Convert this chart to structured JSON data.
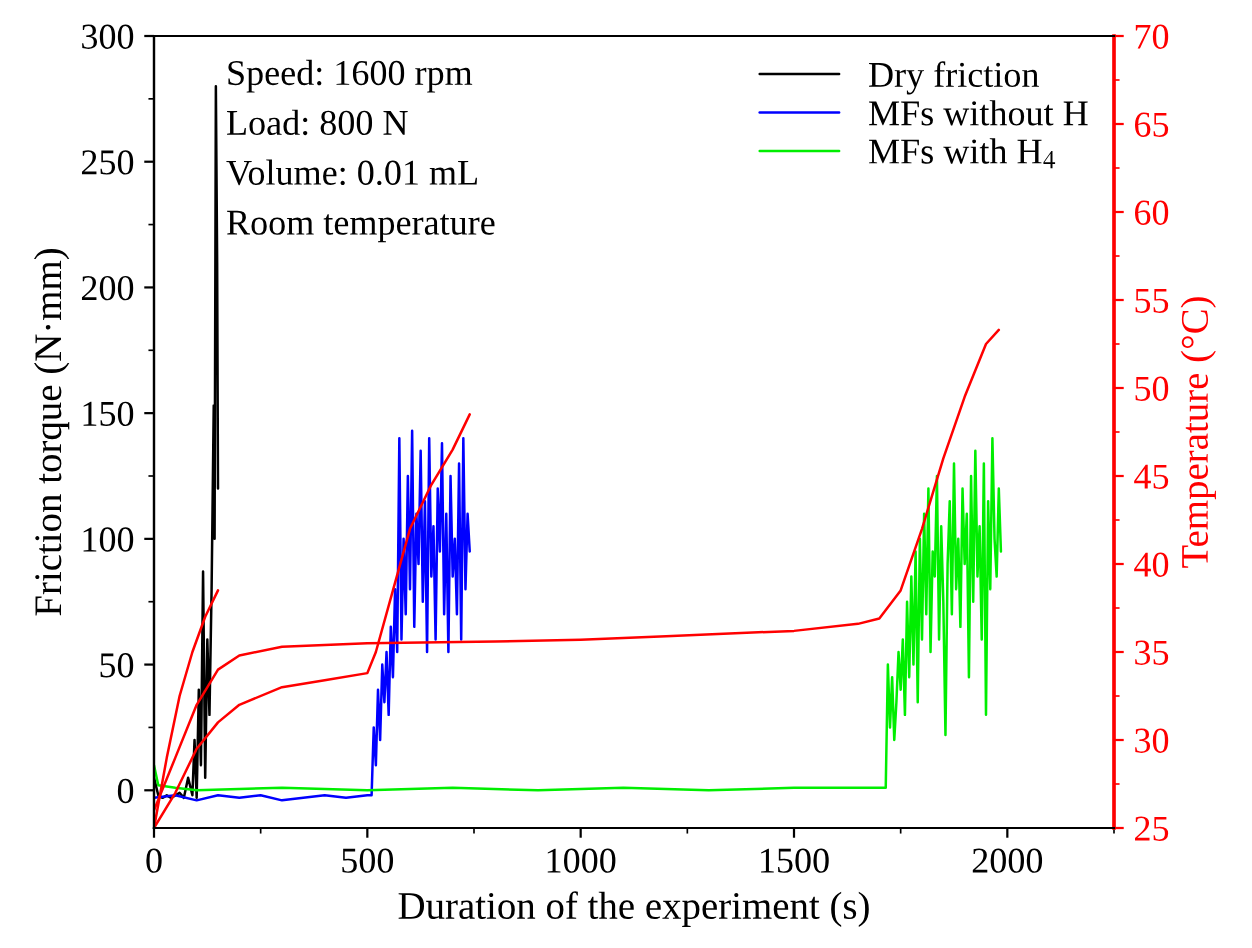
{
  "chart_data": {
    "type": "line",
    "xlabel": "Duration of the experiment (s)",
    "ylabel": "Friction torque (N·mm)",
    "y2label": "Temperature (°C)",
    "xlim": [
      0,
      2250
    ],
    "xticks": [
      0,
      500,
      1000,
      1500,
      2000
    ],
    "ylim": [
      -15,
      300
    ],
    "yticks": [
      0,
      50,
      100,
      150,
      200,
      250,
      300
    ],
    "y2lim": [
      25,
      70
    ],
    "y2ticks": [
      25,
      30,
      35,
      40,
      45,
      50,
      55,
      60,
      65,
      70
    ],
    "grid": false,
    "legend": "top right",
    "annotations": [
      "Speed: 1600 rpm",
      "Load: 800 N",
      "Volume: 0.01 mL",
      "Room temperature"
    ],
    "series": [
      {
        "name": "Dry friction",
        "color": "#000000",
        "x": [
          0,
          10,
          20,
          30,
          40,
          50,
          60,
          70,
          80,
          90,
          95,
          100,
          105,
          110,
          115,
          120,
          125,
          130,
          135,
          140,
          142,
          145,
          148,
          150
        ],
        "values": [
          5,
          -2,
          -3,
          -2,
          -3,
          -2,
          -1,
          -3,
          5,
          -2,
          20,
          -3,
          40,
          10,
          87,
          5,
          60,
          30,
          80,
          153,
          100,
          280,
          210,
          120
        ]
      },
      {
        "name": "MFs without H",
        "color": "#0000ff",
        "x": [
          0,
          50,
          100,
          150,
          200,
          250,
          300,
          350,
          400,
          450,
          500,
          510,
          515,
          520,
          525,
          530,
          535,
          540,
          545,
          550,
          555,
          560,
          565,
          570,
          575,
          580,
          585,
          590,
          595,
          600,
          605,
          610,
          615,
          620,
          625,
          630,
          635,
          640,
          645,
          650,
          655,
          660,
          665,
          670,
          675,
          680,
          685,
          690,
          695,
          700,
          705,
          710,
          715,
          720,
          725,
          730,
          735,
          740
        ],
        "values": [
          -3,
          -2,
          -4,
          -2,
          -3,
          -2,
          -4,
          -3,
          -2,
          -3,
          -2,
          -2,
          25,
          10,
          40,
          20,
          50,
          35,
          55,
          30,
          65,
          45,
          80,
          55,
          140,
          60,
          100,
          70,
          125,
          80,
          143,
          65,
          110,
          90,
          135,
          75,
          115,
          55,
          140,
          85,
          105,
          60,
          120,
          95,
          138,
          70,
          110,
          55,
          125,
          85,
          100,
          70,
          130,
          60,
          140,
          80,
          110,
          95
        ]
      },
      {
        "name": "MFs with H$_{4}$",
        "color": "#00ee00",
        "x": [
          0,
          10,
          50,
          100,
          300,
          500,
          700,
          900,
          1100,
          1300,
          1500,
          1700,
          1715,
          1720,
          1725,
          1730,
          1735,
          1740,
          1745,
          1750,
          1755,
          1760,
          1765,
          1770,
          1775,
          1780,
          1785,
          1790,
          1795,
          1800,
          1805,
          1810,
          1815,
          1820,
          1825,
          1830,
          1835,
          1840,
          1845,
          1850,
          1855,
          1860,
          1865,
          1870,
          1875,
          1880,
          1885,
          1890,
          1895,
          1900,
          1905,
          1910,
          1915,
          1920,
          1925,
          1930,
          1935,
          1940,
          1945,
          1950,
          1955,
          1960,
          1965,
          1970,
          1975,
          1980,
          1985
        ],
        "values": [
          10,
          2,
          1,
          0,
          1,
          0,
          1,
          0,
          1,
          0,
          1,
          1,
          1,
          50,
          25,
          45,
          20,
          35,
          55,
          40,
          60,
          30,
          75,
          45,
          85,
          50,
          95,
          35,
          100,
          60,
          110,
          70,
          120,
          55,
          95,
          85,
          125,
          60,
          105,
          75,
          22,
          90,
          115,
          70,
          130,
          80,
          100,
          65,
          120,
          90,
          110,
          45,
          125,
          75,
          135,
          85,
          105,
          60,
          130,
          30,
          115,
          80,
          140,
          100,
          85,
          120,
          95
        ]
      },
      {
        "color": "#ff0000",
        "axis": "y2",
        "x": [
          0,
          30,
          60,
          90,
          120,
          150
        ],
        "values": [
          25,
          29,
          32.5,
          35,
          37,
          38.5
        ]
      },
      {
        "color": "#ff0000",
        "axis": "y2",
        "x": [
          0,
          50,
          100,
          150,
          200,
          300,
          400,
          500,
          520,
          560,
          600,
          650,
          700,
          740
        ],
        "values": [
          25,
          27,
          29.5,
          31,
          32,
          33,
          33.4,
          33.8,
          35,
          38.5,
          42,
          44.5,
          46.5,
          48.5
        ]
      },
      {
        "color": "#ff0000",
        "axis": "y2",
        "x": [
          0,
          50,
          100,
          150,
          200,
          300,
          500,
          800,
          1000,
          1200,
          1500,
          1650,
          1700,
          1750,
          1800,
          1850,
          1900,
          1950,
          1980
        ],
        "values": [
          26,
          29,
          32,
          34,
          34.8,
          35.3,
          35.5,
          35.6,
          35.7,
          35.9,
          36.2,
          36.6,
          36.9,
          38.5,
          42,
          46,
          49.5,
          52.5,
          53.3
        ]
      }
    ]
  }
}
